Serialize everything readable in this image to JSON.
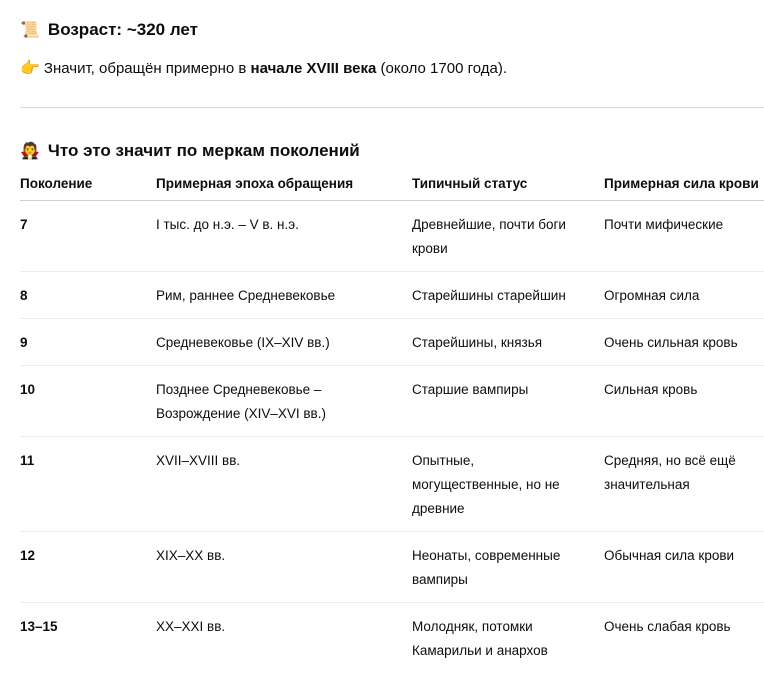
{
  "age_heading": {
    "icon": "scroll-icon",
    "text": "Возраст: ~320 лет"
  },
  "summary": {
    "icon": "pointing-hand-icon",
    "before": "Значит, обращён примерно в ",
    "bold": "начале XVIII века",
    "after": " (около 1700 года)."
  },
  "generations_heading": {
    "icon": "vampire-icon",
    "text": "Что это значит по меркам поколений"
  },
  "table": {
    "headers": [
      "Поколение",
      "Примерная эпоха обращения",
      "Типичный статус",
      "Примерная сила крови"
    ],
    "rows": [
      [
        "7",
        "I тыс. до н.э. – V в. н.э.",
        "Древнейшие, почти боги крови",
        "Почти мифические"
      ],
      [
        "8",
        "Рим, раннее Средневековье",
        "Старейшины старейшин",
        "Огромная сила"
      ],
      [
        "9",
        "Средневековье (IX–XIV вв.)",
        "Старейшины, князья",
        "Очень сильная кровь"
      ],
      [
        "10",
        "Позднее Средневековье – Возрождение (XIV–XVI вв.)",
        "Старшие вампиры",
        "Сильная кровь"
      ],
      [
        "11",
        "XVII–XVIII вв.",
        "Опытные, могущественные, но не древние",
        "Средняя, но всё ещё значительная"
      ],
      [
        "12",
        "XIX–XX вв.",
        "Неонаты, современные вампиры",
        "Обычная сила крови"
      ],
      [
        "13–15",
        "XX–XXI вв.",
        "Молодняк, потомки Камарильи и анархов",
        "Очень слабая кровь"
      ]
    ]
  }
}
